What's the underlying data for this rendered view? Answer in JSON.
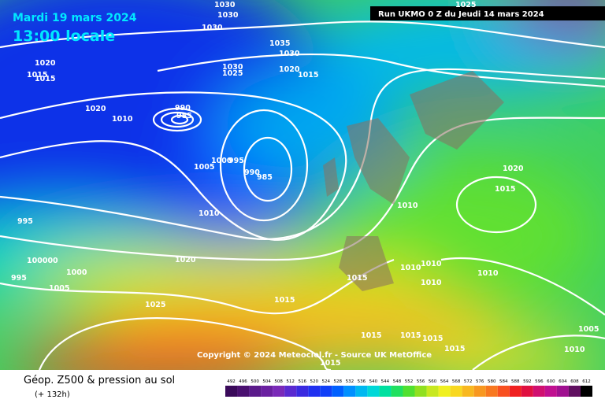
{
  "header": {
    "date": "Mardi 19 mars 2024",
    "time": "13:00 locale",
    "run": "Run UKMO 0 Z du Jeudi 14 mars 2024"
  },
  "copyright": "Copyright © 2024 Meteociel.fr - Source UK MetOffice",
  "footer": {
    "title": "Géop. Z500 & pression au sol",
    "lead": "(+ 132h)"
  },
  "scale": {
    "values": [
      492,
      496,
      500,
      504,
      508,
      512,
      516,
      520,
      524,
      528,
      532,
      536,
      540,
      544,
      548,
      552,
      556,
      560,
      564,
      568,
      572,
      576,
      580,
      584,
      588,
      592,
      596,
      600,
      604,
      608,
      612
    ],
    "colors": [
      "#3a0a5a",
      "#4a1070",
      "#5a1a8a",
      "#6a20a0",
      "#7a2ab8",
      "#5a2ad0",
      "#3a2ae0",
      "#2030f0",
      "#1040f8",
      "#0060ff",
      "#0090ff",
      "#00b8f0",
      "#00d8d8",
      "#00e0a0",
      "#20e060",
      "#50e030",
      "#90e020",
      "#c8e820",
      "#f0f020",
      "#f8d820",
      "#f8b820",
      "#f89820",
      "#f87820",
      "#f85020",
      "#f02020",
      "#e01040",
      "#d01070",
      "#c01090",
      "#a01090",
      "#601060",
      "#000000"
    ]
  },
  "isobar_labels": [
    "1030",
    "1030",
    "1030",
    "1035",
    "1030",
    "1030",
    "1025",
    "1020",
    "1015",
    "1020",
    "1015",
    "1015",
    "1020",
    "1010",
    "990",
    "985",
    "1005",
    "1000",
    "995",
    "990",
    "985",
    "1010",
    "1010",
    "1020",
    "1015",
    "995",
    "100000",
    "995",
    "1000",
    "1005",
    "1020",
    "1025",
    "1010",
    "1010",
    "1010",
    "1010",
    "1015",
    "1015",
    "1015",
    "1015",
    "1015",
    "1015",
    "1015",
    "1010",
    "1005",
    "1025"
  ]
}
